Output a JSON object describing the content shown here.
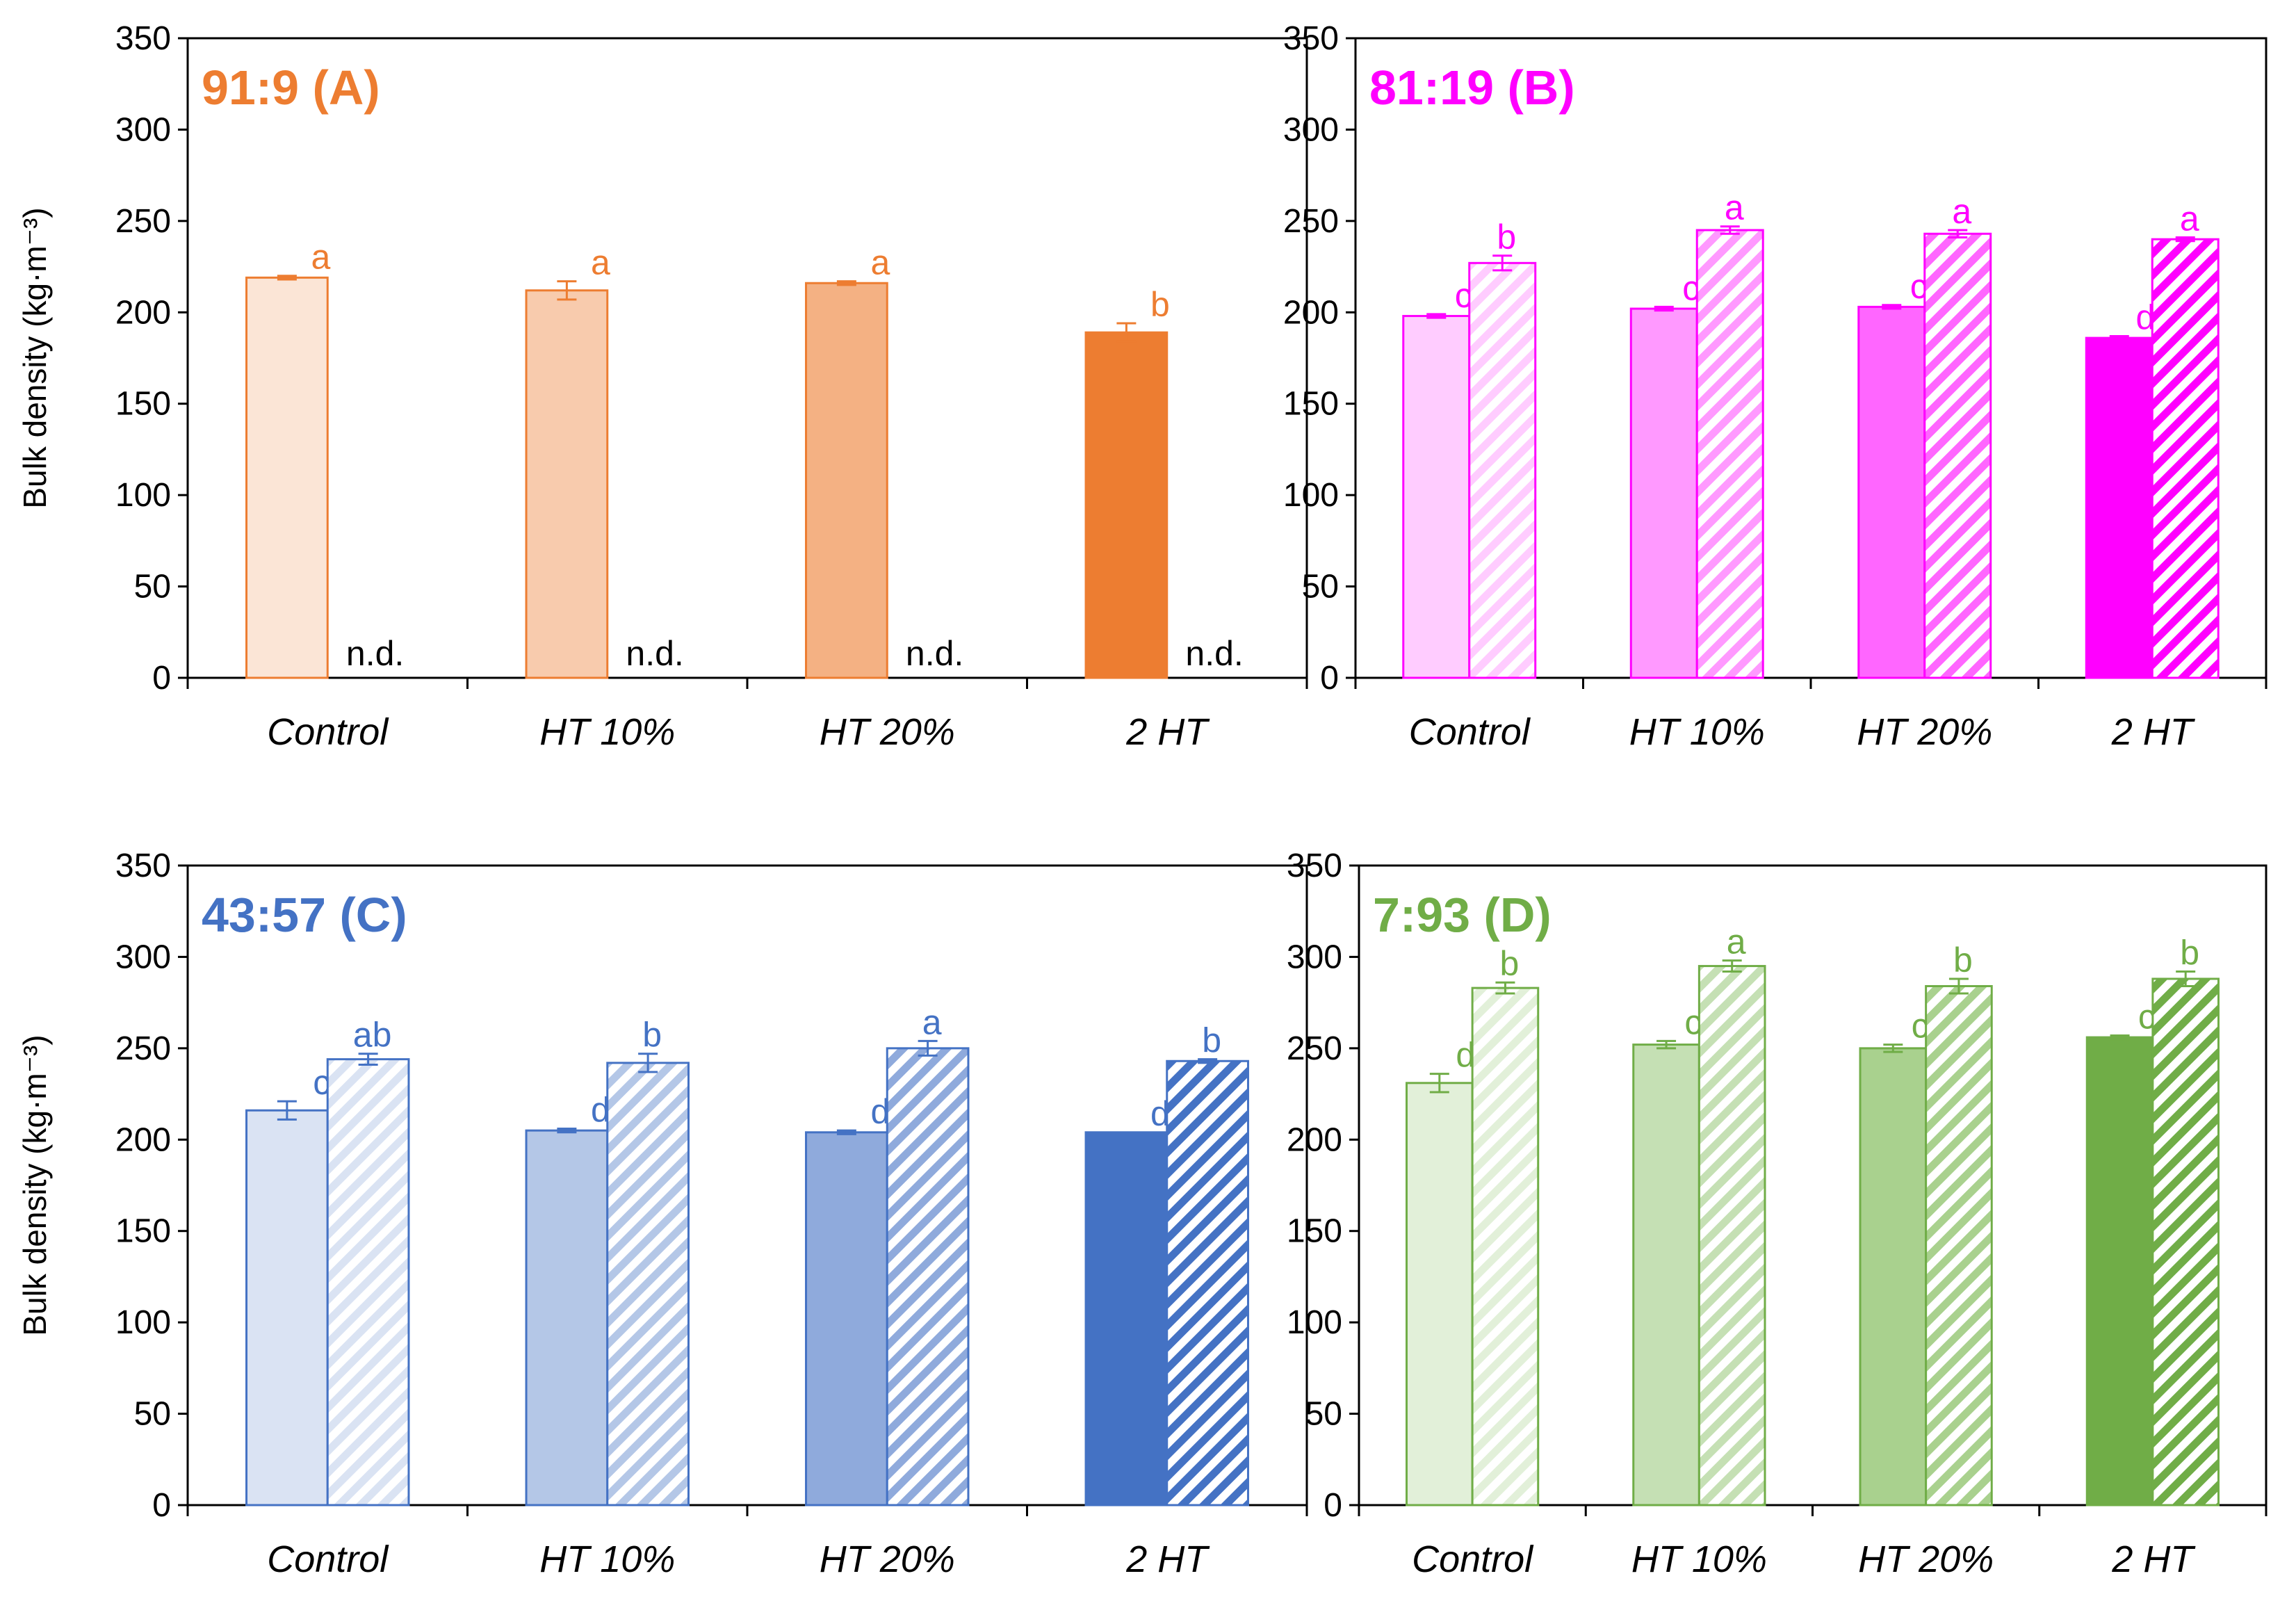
{
  "chart_data": [
    {
      "type": "bar",
      "title": "91:9 (A)",
      "color": "#ED7D31",
      "shades": [
        "#FBE5D6",
        "#F8CBAD",
        "#F4B183",
        "#ED7D31"
      ],
      "ylabel": "Bulk density (kg·m⁻³)",
      "ylim": [
        0,
        350
      ],
      "yticks": [
        0,
        50,
        100,
        150,
        200,
        250,
        300,
        350
      ],
      "categories": [
        "Control",
        "HT 10%",
        "HT 20%",
        "2 HT"
      ],
      "series": [
        {
          "name": "solid",
          "values": [
            219,
            212,
            216,
            189
          ],
          "errors": [
            1,
            5,
            1,
            5
          ],
          "labels": [
            "a",
            "a",
            "a",
            "b"
          ]
        },
        {
          "name": "hatched",
          "values": [
            null,
            null,
            null,
            null
          ],
          "errors": [
            0,
            0,
            0,
            0
          ],
          "labels": [
            "n.d.",
            "n.d.",
            "n.d.",
            "n.d."
          ]
        }
      ]
    },
    {
      "type": "bar",
      "title": "81:19 (B)",
      "color": "#FF00FF",
      "shades": [
        "#FFCCFF",
        "#FF99FF",
        "#FF66FF",
        "#FF00FF"
      ],
      "ylabel": "",
      "ylim": [
        0,
        350
      ],
      "yticks": [
        0,
        50,
        100,
        150,
        200,
        250,
        300,
        350
      ],
      "categories": [
        "Control",
        "HT 10%",
        "HT 20%",
        "2 HT"
      ],
      "series": [
        {
          "name": "solid",
          "values": [
            198,
            202,
            203,
            186
          ],
          "errors": [
            1,
            1,
            1,
            1
          ],
          "labels": [
            "c",
            "c",
            "c",
            "d"
          ]
        },
        {
          "name": "hatched",
          "values": [
            227,
            245,
            243,
            240
          ],
          "errors": [
            4,
            2,
            2,
            1
          ],
          "labels": [
            "b",
            "a",
            "a",
            "a"
          ]
        }
      ]
    },
    {
      "type": "bar",
      "title": "43:57 (C)",
      "color": "#4472C4",
      "shades": [
        "#DAE3F3",
        "#B4C7E7",
        "#8FAADC",
        "#4472C4"
      ],
      "ylabel": "Bulk density (kg·m⁻³)",
      "ylim": [
        0,
        350
      ],
      "yticks": [
        0,
        50,
        100,
        150,
        200,
        250,
        300,
        350
      ],
      "categories": [
        "Control",
        "HT 10%",
        "HT 20%",
        "2 HT"
      ],
      "series": [
        {
          "name": "solid",
          "values": [
            216,
            205,
            204,
            204
          ],
          "errors": [
            5,
            1,
            1,
            0
          ],
          "labels": [
            "c",
            "d",
            "d",
            "d"
          ]
        },
        {
          "name": "hatched",
          "values": [
            244,
            242,
            250,
            243
          ],
          "errors": [
            3,
            5,
            4,
            1
          ],
          "labels": [
            "ab",
            "b",
            "a",
            "b"
          ]
        }
      ]
    },
    {
      "type": "bar",
      "title": "7:93 (D)",
      "color": "#70AD47",
      "shades": [
        "#E2F0D9",
        "#C5E0B4",
        "#A9D18E",
        "#70AD47"
      ],
      "ylabel": "",
      "ylim": [
        0,
        350
      ],
      "yticks": [
        0,
        50,
        100,
        150,
        200,
        250,
        300,
        350
      ],
      "categories": [
        "Control",
        "HT 10%",
        "HT 20%",
        "2 HT"
      ],
      "series": [
        {
          "name": "solid",
          "values": [
            231,
            252,
            250,
            256
          ],
          "errors": [
            5,
            2,
            2,
            1
          ],
          "labels": [
            "d",
            "c",
            "c",
            "c"
          ]
        },
        {
          "name": "hatched",
          "values": [
            283,
            295,
            284,
            288
          ],
          "errors": [
            3,
            3,
            4,
            4
          ],
          "labels": [
            "b",
            "a",
            "b",
            "b"
          ]
        }
      ]
    }
  ]
}
